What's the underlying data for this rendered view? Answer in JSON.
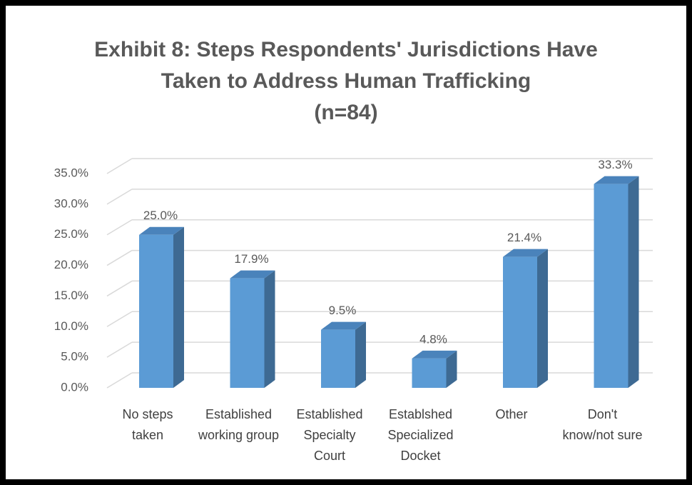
{
  "chart_data": {
    "type": "bar",
    "title": "Exhibit 8: Steps Respondents' Jurisdictions Have\nTaken to Address Human Trafficking",
    "subtitle": "(n=84)",
    "categories": [
      "No steps taken",
      "Established working group",
      "Established Specialty Court",
      "Establshed Specialized Docket",
      "Other",
      "Don't know/not sure"
    ],
    "values": [
      25.0,
      17.9,
      9.5,
      4.8,
      21.4,
      33.3
    ],
    "value_labels": [
      "25.0%",
      "17.9%",
      "9.5%",
      "4.8%",
      "21.4%",
      "33.3%"
    ],
    "color": "#5b9bd5",
    "ylim": [
      0,
      35
    ],
    "yticks": [
      {
        "value": 0,
        "label": "0.0%"
      },
      {
        "value": 5,
        "label": "5.0%"
      },
      {
        "value": 10,
        "label": "10.0%"
      },
      {
        "value": 15,
        "label": "15.0%"
      },
      {
        "value": 20,
        "label": "20.0%"
      },
      {
        "value": 25,
        "label": "25.0%"
      },
      {
        "value": 30,
        "label": "30.0%"
      },
      {
        "value": 35,
        "label": "35.0%"
      }
    ],
    "grid": true
  }
}
